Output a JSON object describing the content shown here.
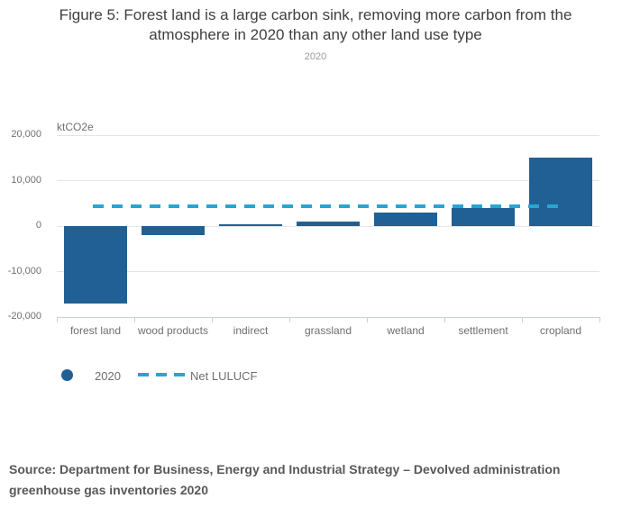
{
  "figure": {
    "title_line1": "Figure 5: Forest land is a large carbon sink, removing more carbon from the",
    "title_line2": "atmosphere in 2020 than any other land use type",
    "subtitle": "2020",
    "source_line1": "Source: Department for Business, Energy and Industrial Strategy – Devolved administration",
    "source_line2": "greenhouse gas inventories 2020"
  },
  "legend": {
    "series_label": "2020",
    "net_label": "Net LULUCF"
  },
  "colors": {
    "bar": "#206095",
    "net_line": "#2aa4d1",
    "gridline": "#e3e6e8",
    "axis": "#c6d2dc",
    "text_muted": "#6f6f6f"
  },
  "chart_data": {
    "type": "bar",
    "title": "Figure 5: Forest land is a large carbon sink, removing more carbon from the atmosphere in 2020 than any other land use type",
    "subtitle": "2020",
    "unit_label": "ktCO2e",
    "categories": [
      "forest land",
      "wood products",
      "indirect",
      "grassland",
      "wetland",
      "settlement",
      "cropland"
    ],
    "series": [
      {
        "name": "2020",
        "values": [
          -17100,
          -2000,
          300,
          900,
          2900,
          4000,
          15000
        ]
      }
    ],
    "net_lulucf": {
      "name": "Net LULUCF",
      "value": 4300,
      "style": "dashed-line"
    },
    "ylim": [
      -20000,
      20000
    ],
    "yticks": [
      20000,
      10000,
      0,
      -10000,
      -20000
    ],
    "grid": true,
    "legend_position": "bottom-left",
    "source": "Source: Department for Business, Energy and Industrial Strategy – Devolved administration greenhouse gas inventories 2020"
  }
}
